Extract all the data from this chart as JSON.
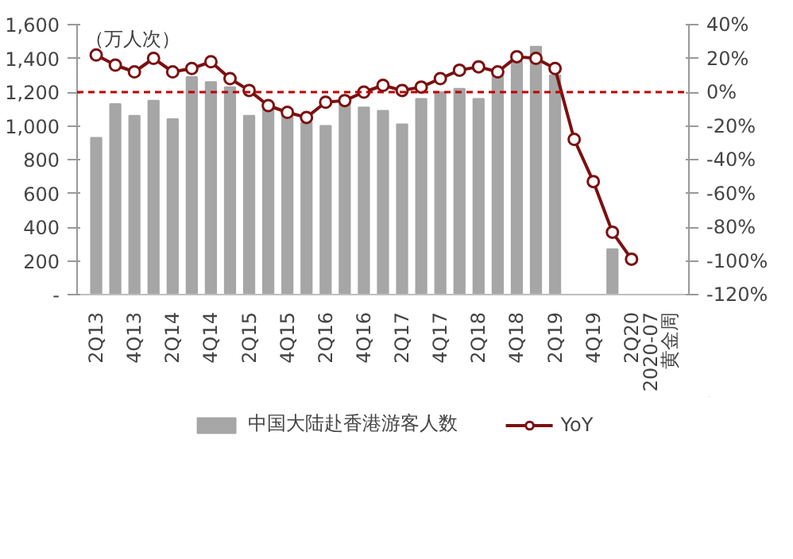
{
  "chart_data": {
    "type": "bar",
    "ylabel": "（万人次）",
    "categories": [
      "2Q13",
      null,
      "4Q13",
      null,
      "2Q14",
      null,
      "4Q14",
      null,
      "2Q15",
      null,
      "4Q15",
      null,
      "2Q16",
      null,
      "4Q16",
      null,
      "2Q17",
      null,
      "4Q17",
      null,
      "2Q18",
      null,
      "4Q18",
      null,
      "2Q19",
      null,
      "4Q19",
      null,
      "2Q20",
      "2020-07",
      "黄金周"
    ],
    "series": [
      {
        "name": "中国大陆赴香港游客人数",
        "color": "#a6a6a6",
        "values": [
          930,
          1130,
          1060,
          1150,
          1040,
          1290,
          1260,
          1230,
          1060,
          1100,
          1060,
          1020,
          1000,
          1130,
          1110,
          1090,
          1010,
          1160,
          1200,
          1220,
          1160,
          1300,
          1380,
          1470,
          1300,
          null,
          null,
          270,
          null,
          null,
          null
        ]
      },
      {
        "name": "YoY",
        "type": "line",
        "axis": "y2",
        "color": "#7b1010",
        "marker": "circle",
        "values": [
          22,
          16,
          12,
          20,
          12,
          14,
          18,
          8,
          1,
          -8,
          -12,
          -15,
          -6,
          -5,
          0,
          4,
          1,
          3,
          8,
          13,
          15,
          12,
          21,
          20,
          14,
          -28,
          -53,
          -83,
          -99,
          null,
          null
        ]
      }
    ],
    "ylim": [
      0,
      1600
    ],
    "yticks": [
      {
        "value": 0,
        "label": "-"
      },
      200,
      400,
      600,
      800,
      {
        "value": 1000,
        "label": "1,000"
      },
      {
        "value": 1200,
        "label": "1,200"
      },
      {
        "value": 1400,
        "label": "1,400"
      },
      {
        "value": 1600,
        "label": "1,600"
      }
    ],
    "y2lim": [
      -120,
      40
    ],
    "y2ticks": [
      {
        "value": -120,
        "label": "-120%"
      },
      {
        "value": -100,
        "label": "-100%"
      },
      {
        "value": -80,
        "label": "-80%"
      },
      {
        "value": -60,
        "label": "-60%"
      },
      {
        "value": -40,
        "label": "-40%"
      },
      {
        "value": -20,
        "label": "-20%"
      },
      {
        "value": 0,
        "label": "0%"
      },
      {
        "value": 20,
        "label": "20%"
      },
      {
        "value": 40,
        "label": "40%"
      }
    ],
    "ref_lines": [
      {
        "axis": "y2",
        "value": 0,
        "color": "#c00000",
        "line_style": "dashed"
      }
    ],
    "legend": "bottom"
  }
}
